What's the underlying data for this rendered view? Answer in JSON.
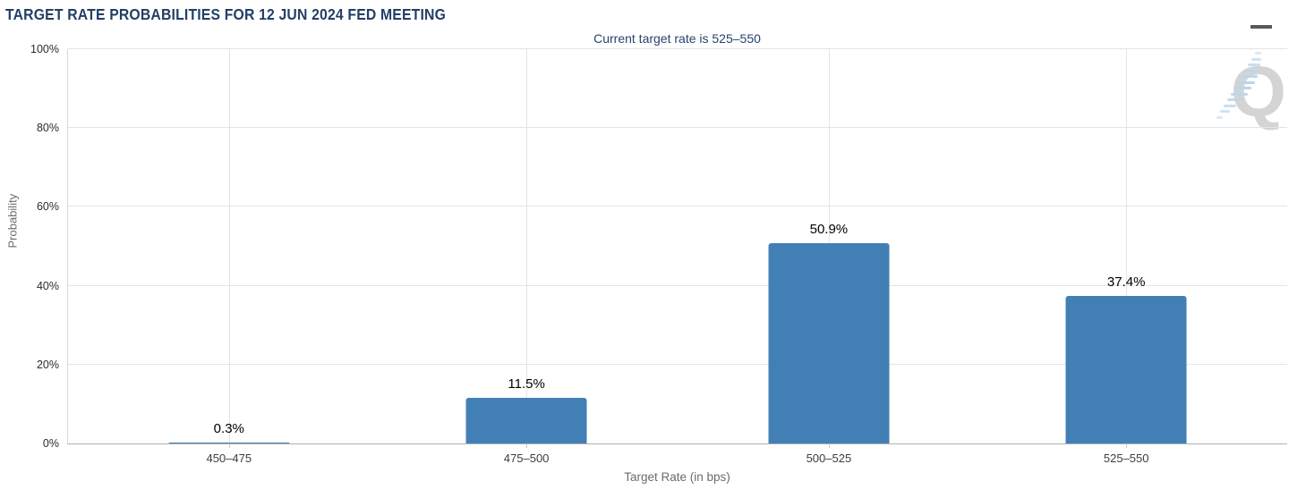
{
  "header": {
    "title": "TARGET RATE PROBABILITIES FOR 12 JUN 2024 FED MEETING"
  },
  "menu": {
    "icon": "hamburger-icon"
  },
  "chart": {
    "subtitle": "Current target rate is 525–550",
    "watermark_letter": "Q",
    "xlabel": "Target Rate (in bps)",
    "ylabel": "Probability"
  },
  "chart_data": {
    "type": "bar",
    "title": "TARGET RATE PROBABILITIES FOR 12 JUN 2024 FED MEETING",
    "subtitle": "Current target rate is 525–550",
    "categories": [
      "450–475",
      "475–500",
      "500–525",
      "525–550"
    ],
    "values": [
      0.3,
      11.5,
      50.9,
      37.4
    ],
    "value_labels": [
      "0.3%",
      "11.5%",
      "50.9%",
      "37.4%"
    ],
    "xlabel": "Target Rate (in bps)",
    "ylabel": "Probability",
    "ylim": [
      0,
      100
    ],
    "y_tick_step": 20,
    "y_tick_suffix": "%",
    "grid": true,
    "legend": false,
    "bar_color": "#427fb5"
  },
  "colors": {
    "title": "#233f66",
    "subtitle": "#27436f",
    "bar": "#427fb5",
    "gridline": "#e4e4e4",
    "axis_line": "#b0b0b0",
    "tick_label": "#2b2b2b",
    "axis_title": "#6b6b6b",
    "value_label": "#000000",
    "menu_icon": "#58595b",
    "watermark_q": "#d4d4d4",
    "watermark_swoosh": "#b9d6ec"
  }
}
